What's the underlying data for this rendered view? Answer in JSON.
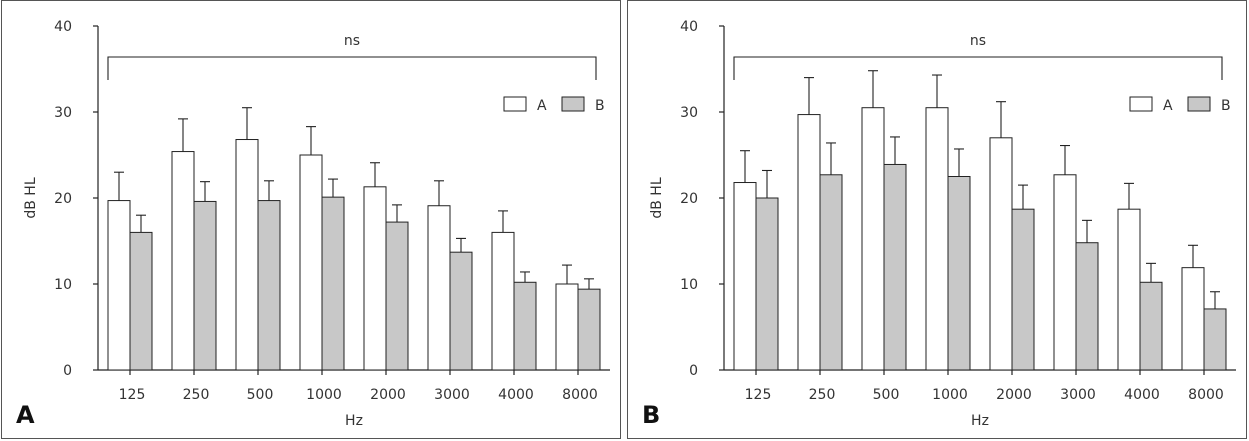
{
  "chart_data": [
    {
      "type": "bar",
      "panel_label": "A",
      "categories": [
        "125",
        "250",
        "500",
        "1000",
        "2000",
        "3000",
        "4000",
        "8000"
      ],
      "series": [
        {
          "name": "A",
          "values": [
            19.7,
            25.4,
            26.8,
            25.0,
            21.3,
            19.1,
            16.0,
            10.0
          ],
          "errors": [
            3.3,
            3.8,
            3.7,
            3.3,
            2.8,
            2.9,
            2.5,
            2.2
          ],
          "color": "#ffffff"
        },
        {
          "name": "B",
          "values": [
            16.0,
            19.6,
            19.7,
            20.1,
            17.2,
            13.7,
            10.2,
            9.4
          ],
          "errors": [
            2.0,
            2.3,
            2.3,
            2.1,
            2.0,
            1.6,
            1.2,
            1.2
          ],
          "color": "#c8c8c8"
        }
      ],
      "xlabel": "Hz",
      "ylabel": "dB HL",
      "ylim": [
        0,
        40
      ],
      "yticks": [
        "0",
        "10",
        "20",
        "30",
        "40"
      ],
      "annotation": "ns",
      "legend_position": "top-right",
      "grid": false
    },
    {
      "type": "bar",
      "panel_label": "B",
      "categories": [
        "125",
        "250",
        "500",
        "1000",
        "2000",
        "3000",
        "4000",
        "8000"
      ],
      "series": [
        {
          "name": "A",
          "values": [
            21.8,
            29.7,
            30.5,
            30.5,
            27.0,
            22.7,
            18.7,
            11.9
          ],
          "errors": [
            3.7,
            4.3,
            4.3,
            3.8,
            4.2,
            3.4,
            3.0,
            2.6
          ],
          "color": "#ffffff"
        },
        {
          "name": "B",
          "values": [
            20.0,
            22.7,
            23.9,
            22.5,
            18.7,
            14.8,
            10.2,
            7.1
          ],
          "errors": [
            3.2,
            3.7,
            3.2,
            3.2,
            2.8,
            2.6,
            2.2,
            2.0
          ],
          "color": "#c8c8c8"
        }
      ],
      "xlabel": "Hz",
      "ylabel": "dB HL",
      "ylim": [
        0,
        40
      ],
      "yticks": [
        "0",
        "10",
        "20",
        "30",
        "40"
      ],
      "annotation": "ns",
      "legend_position": "top-right",
      "grid": false
    }
  ]
}
